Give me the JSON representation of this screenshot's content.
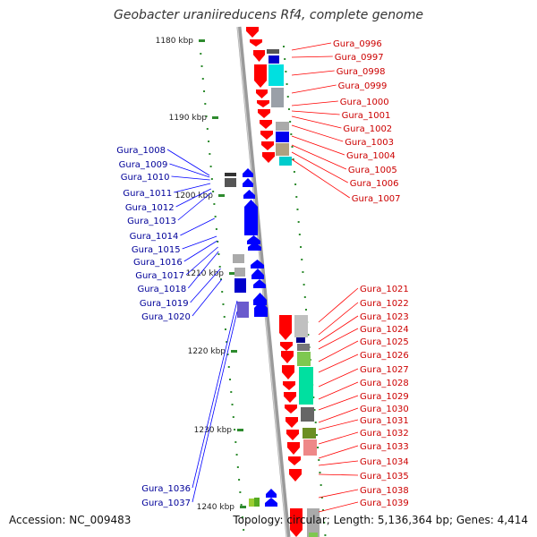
{
  "title": "Geobacter uraniireducens Rf4, complete genome",
  "footer": {
    "accession": "Accession: NC_009483",
    "topology": "Topology: circular; Length: 5,136,364 bp; Genes: 4,414"
  },
  "colors": {
    "forward": "#ff0000",
    "reverse": "#0000ff",
    "right_label": "#cc0000",
    "left_label": "#000099",
    "tick": "#2e8b2e",
    "axis": "#999999"
  },
  "ticks": [
    {
      "label": "1180 kbp"
    },
    {
      "label": "1190 kbp"
    },
    {
      "label": "1200 kbp"
    },
    {
      "label": "1210 kbp"
    },
    {
      "label": "1220 kbp"
    },
    {
      "label": "1230 kbp"
    },
    {
      "label": "1240 kbp"
    }
  ],
  "right_genes": [
    "Gura_0996",
    "Gura_0997",
    "Gura_0998",
    "Gura_0999",
    "Gura_1000",
    "Gura_1001",
    "Gura_1002",
    "Gura_1003",
    "Gura_1004",
    "Gura_1005",
    "Gura_1006",
    "Gura_1007",
    "Gura_1021",
    "Gura_1022",
    "Gura_1023",
    "Gura_1024",
    "Gura_1025",
    "Gura_1026",
    "Gura_1027",
    "Gura_1028",
    "Gura_1029",
    "Gura_1030",
    "Gura_1031",
    "Gura_1032",
    "Gura_1033",
    "Gura_1034",
    "Gura_1035",
    "Gura_1038",
    "Gura_1039"
  ],
  "left_genes": [
    "Gura_1008",
    "Gura_1009",
    "Gura_1010",
    "Gura_1011",
    "Gura_1012",
    "Gura_1013",
    "Gura_1014",
    "Gura_1015",
    "Gura_1016",
    "Gura_1017",
    "Gura_1018",
    "Gura_1019",
    "Gura_1020",
    "Gura_1036",
    "Gura_1037"
  ]
}
